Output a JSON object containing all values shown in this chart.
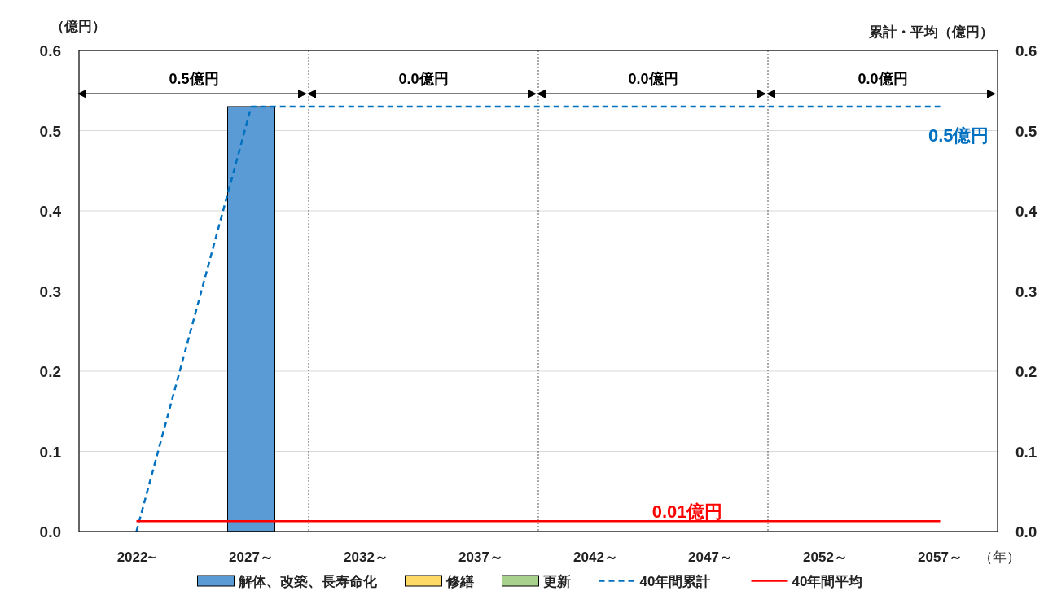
{
  "chart_data": {
    "type": "bar",
    "stacked": true,
    "categories": [
      "2022~",
      "2027～",
      "2032～",
      "2037～",
      "2042～",
      "2047～",
      "2052～",
      "2057～"
    ],
    "series": [
      {
        "name": "解体、改築、長寿命化",
        "color": "#5b9bd5",
        "values": [
          0,
          0.53,
          0,
          0,
          0,
          0,
          0,
          0
        ]
      },
      {
        "name": "修繕",
        "color": "#ffd966",
        "values": [
          0,
          0,
          0,
          0,
          0,
          0,
          0,
          0
        ]
      },
      {
        "name": "更新",
        "color": "#a9d18e",
        "values": [
          0,
          0,
          0,
          0,
          0,
          0,
          0,
          0
        ]
      },
      {
        "name": "40年間累計",
        "type": "line",
        "axis": "y2",
        "line_style": "dashed",
        "color": "#0070c0",
        "values": [
          0,
          0.53,
          0.53,
          0.53,
          0.53,
          0.53,
          0.53,
          0.53
        ]
      },
      {
        "name": "40年間平均",
        "type": "line",
        "axis": "y2",
        "line_style": "solid",
        "color": "#ff0000",
        "values": [
          0.013,
          0.013,
          0.013,
          0.013,
          0.013,
          0.013,
          0.013,
          0.013
        ]
      }
    ],
    "xlabel": "（年）",
    "ylabel": "（億円）",
    "y2label": "累計・平均（億円）",
    "ylim": [
      0,
      0.6
    ],
    "yticks": [
      {
        "value": 0,
        "label": "0.0"
      },
      0.1,
      0.2,
      0.3,
      0.4,
      0.5,
      0.6
    ],
    "y2lim": [
      0,
      0.6
    ],
    "y2ticks": [
      {
        "value": 0,
        "label": "0.0"
      },
      0.1,
      0.2,
      0.3,
      0.4,
      0.5,
      0.6
    ],
    "grid": "y",
    "legend": "bottom",
    "annotations": [
      "0.5億円",
      "0.0億円",
      "0.0億円",
      "0.0億円",
      {
        "text": "0.5億円",
        "x": "2057～",
        "y": 0.53
      },
      {
        "text": "0.01億円",
        "x": "2047～",
        "y": 0.013
      }
    ]
  }
}
